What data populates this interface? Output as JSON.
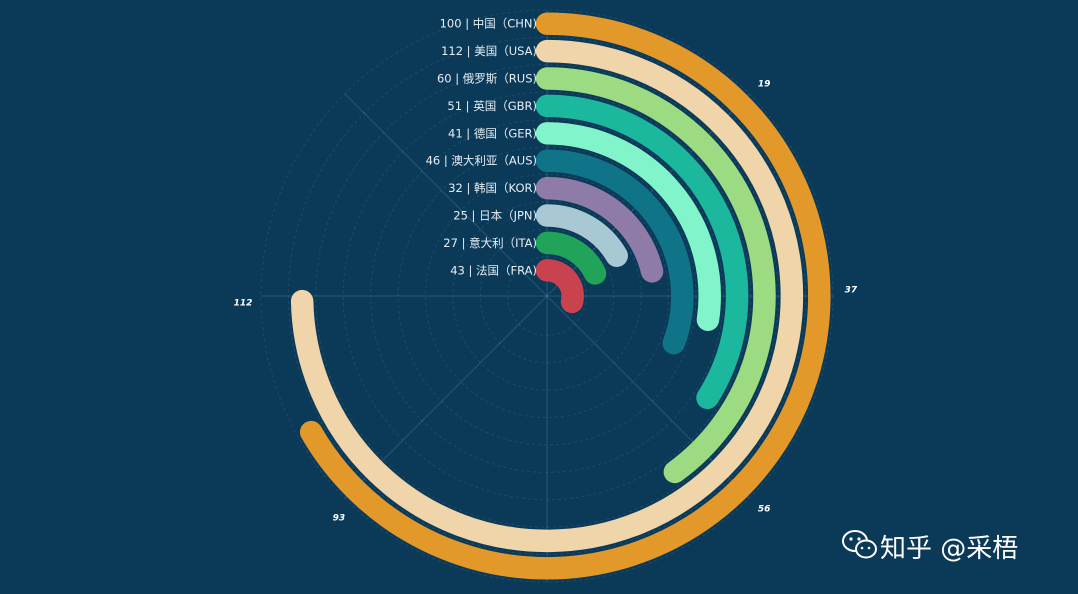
{
  "chart_data": {
    "type": "bar",
    "polar": true,
    "start_angle_deg": 90,
    "clockwise": true,
    "radius_max": 150,
    "categories": [
      "中国（CHN)",
      "美国（USA)",
      "俄罗斯（RUS)",
      "英国（GBR)",
      "德国（GER)",
      "澳大利亚（AUS)",
      "韩国（KOR)",
      "日本（JPN)",
      "意大利（ITA)",
      "法国（FRA)"
    ],
    "values": [
      100,
      112,
      60,
      51,
      41,
      46,
      32,
      25,
      27,
      43
    ],
    "labels": [
      "100 | 中国（CHN)",
      "112 | 美国（USA)",
      "60 | 俄罗斯（RUS)",
      "51 | 英国（GBR)",
      "41 | 德国（GER)",
      "46 | 澳大利亚（AUS)",
      "32 | 韩国（KOR)",
      "25 | 日本（JPN)",
      "27 | 意大利（ITA)",
      "43 | 法国（FRA)"
    ],
    "colors": [
      "#e3982a",
      "#efd5a9",
      "#9ddb82",
      "#1bb89e",
      "#82f4c9",
      "#107489",
      "#8f7ba8",
      "#a8c9d4",
      "#22a35a",
      "#c9434f"
    ],
    "tick_labels": [
      "19",
      "37",
      "56",
      "93",
      "112"
    ],
    "grid": true
  },
  "watermark": {
    "text": "知乎 @采梧",
    "icon": "wechat-icon"
  }
}
